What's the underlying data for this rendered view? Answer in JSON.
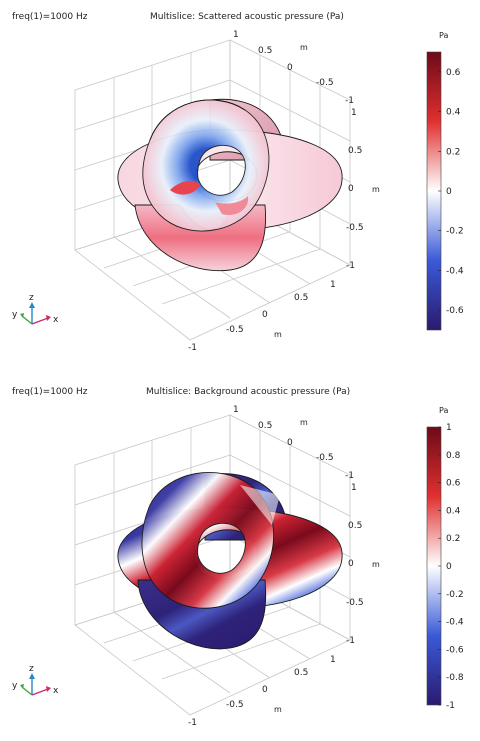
{
  "plots": [
    {
      "id": "top",
      "param_label": "freq(1)=1000 Hz",
      "title": "Multislice: Scattered acoustic pressure (Pa)",
      "axis_unit": "m",
      "y_ticks": [
        "1",
        "0.5",
        "0",
        "-0.5",
        "-1"
      ],
      "z_ticks": [
        "1",
        "0.5",
        "0",
        "-0.5",
        "-1"
      ],
      "x_ticks": [
        "1",
        "0.5",
        "0",
        "-0.5",
        "-1"
      ],
      "triad": {
        "x": "x",
        "y": "y",
        "z": "z"
      },
      "colorbar": {
        "unit": "Pa",
        "min": -0.7,
        "max": 0.7,
        "ticks": [
          "0.6",
          "0.4",
          "0.2",
          "0",
          "-0.2",
          "-0.4",
          "-0.6"
        ]
      }
    },
    {
      "id": "bottom",
      "param_label": "freq(1)=1000 Hz",
      "title": "Multislice: Background acoustic pressure (Pa)",
      "axis_unit": "m",
      "y_ticks": [
        "1",
        "0.5",
        "0",
        "-0.5",
        "-1"
      ],
      "z_ticks": [
        "1",
        "0.5",
        "0",
        "-0.5",
        "-1"
      ],
      "x_ticks": [
        "1",
        "0.5",
        "0",
        "-0.5",
        "-1"
      ],
      "triad": {
        "x": "x",
        "y": "y",
        "z": "z"
      },
      "colorbar": {
        "unit": "Pa",
        "min": -1,
        "max": 1,
        "ticks": [
          "1",
          "0.8",
          "0.6",
          "0.4",
          "0.2",
          "0",
          "-0.2",
          "-0.4",
          "-0.6",
          "-0.8",
          "-1"
        ]
      }
    }
  ],
  "chart_data": [
    {
      "type": "heatmap",
      "title": "Multislice: Scattered acoustic pressure (Pa)",
      "subtitle": "freq(1)=1000 Hz",
      "colorbar_label": "Pa",
      "colorbar_range": [
        -0.7,
        0.7
      ],
      "colormap": [
        "#2a1a6e",
        "#3a5ad8",
        "#ffffff",
        "#e03030",
        "#6e0a18"
      ],
      "axes": {
        "x": [
          -1,
          1
        ],
        "y": [
          -1,
          1
        ],
        "z": [
          -1,
          1
        ],
        "unit": "m"
      }
    },
    {
      "type": "heatmap",
      "title": "Multislice: Background acoustic pressure (Pa)",
      "subtitle": "freq(1)=1000 Hz",
      "colorbar_label": "Pa",
      "colorbar_range": [
        -1,
        1
      ],
      "colormap": [
        "#2a1a6e",
        "#3a5ad8",
        "#ffffff",
        "#e03030",
        "#6e0a18"
      ],
      "axes": {
        "x": [
          -1,
          1
        ],
        "y": [
          -1,
          1
        ],
        "z": [
          -1,
          1
        ],
        "unit": "m"
      }
    }
  ]
}
